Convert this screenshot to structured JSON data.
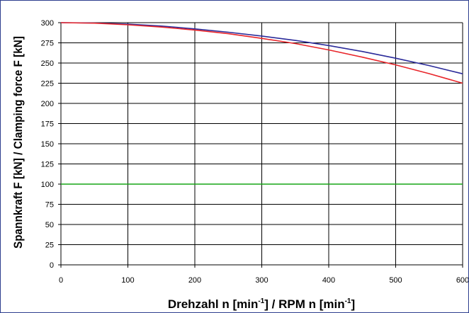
{
  "chart_data": {
    "type": "line",
    "xlabel_parts": [
      "Drehzahl n [min",
      "-1",
      "] / RPM n [min",
      "-1",
      "]"
    ],
    "ylabel": "Spannkraft F [kN]  / Clamping force F [kN]",
    "xlim": [
      0,
      600
    ],
    "ylim": [
      0,
      300
    ],
    "x_ticks": [
      "0",
      "100",
      "200",
      "300",
      "400",
      "500",
      "600"
    ],
    "y_ticks": [
      "0",
      "25",
      "50",
      "75",
      "100",
      "125",
      "150",
      "175",
      "200",
      "225",
      "250",
      "275",
      "300"
    ],
    "grid": true,
    "series": [
      {
        "color": "#2b2b9a",
        "x": [
          0,
          50,
          100,
          150,
          200,
          250,
          300,
          350,
          400,
          450,
          500,
          550,
          600
        ],
        "y": [
          300,
          299.6,
          298.2,
          295.8,
          292.3,
          288.2,
          283.4,
          278.0,
          271.7,
          264.3,
          256.0,
          246.8,
          236.7
        ]
      },
      {
        "color": "#e8252a",
        "x": [
          0,
          50,
          100,
          150,
          200,
          250,
          300,
          350,
          400,
          450,
          500,
          550,
          600
        ],
        "y": [
          300,
          299.4,
          297.4,
          294.6,
          290.9,
          286.3,
          280.5,
          274.1,
          266.2,
          257.3,
          247.7,
          236.8,
          225.0
        ]
      },
      {
        "color": "#16a516",
        "x": [
          0,
          600
        ],
        "y": [
          100,
          100
        ]
      }
    ]
  }
}
